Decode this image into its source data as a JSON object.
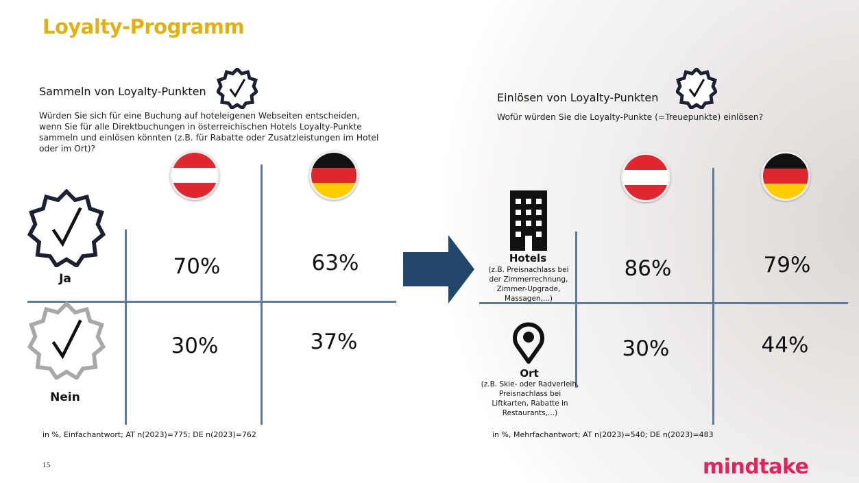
{
  "title": "Loyalty-Programm",
  "left": {
    "heading": "Sammeln von Loyalty-Punkten",
    "question": "Würden Sie sich für eine Buchung auf hoteleigenen Webseiten entscheiden, wenn Sie für alle Direktbuchungen in österreichischen Hotels Loyalty-Punkte sammeln und einlösen könnten (z.B. für Rabatte oder Zusatzleistungen im Hotel oder im Ort)?",
    "rows": [
      {
        "label": "Ja",
        "at": "70%",
        "de": "63%"
      },
      {
        "label": "Nein",
        "at": "30%",
        "de": "37%"
      }
    ],
    "footnote": "in %, Einfachantwort; AT n(2023)=775; DE n(2023)=762"
  },
  "right": {
    "heading": "Einlösen von Loyalty-Punkten",
    "question": "Wofür würden Sie die Loyalty-Punkte (=Treuepunkte) einlösen?",
    "rows": [
      {
        "label": "Hotels",
        "sub": [
          "(z.B. Preisnachlass bei",
          "der Zimmerrechnung,",
          "Zimmer-Upgrade,",
          "Massagen,...)"
        ],
        "at": "86%",
        "de": "79%"
      },
      {
        "label": "Ort",
        "sub": [
          "(z.B. Skie- oder Radverleih,",
          "Preisnachlass bei",
          "Liftkarten, Rabatte in",
          "Restaurants,...)"
        ],
        "at": "30%",
        "de": "44%"
      }
    ],
    "footnote": "in %, Mehrfachantwort; AT n(2023)=540; DE n(2023)=483"
  },
  "page_number": "15",
  "logo": "mindtake",
  "colors": {
    "title": "#e3b00f",
    "lines": "#5f7a98",
    "arrow": "#23466b",
    "logo": "#e0245e"
  }
}
